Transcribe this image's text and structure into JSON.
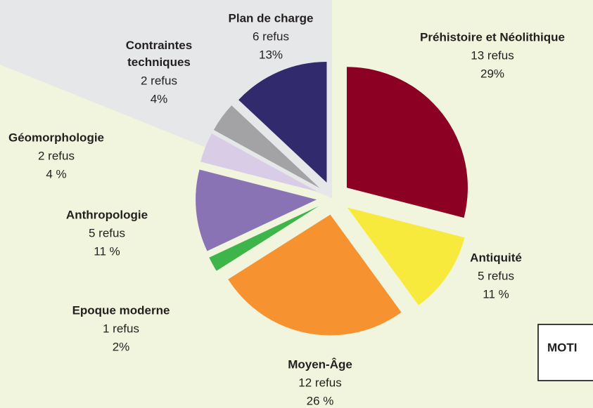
{
  "chart_data": {
    "type": "pie",
    "categories": [
      "Préhistoire et Néolithique",
      "Antiquité",
      "Moyen-Âge",
      "Epoque moderne",
      "Anthropologie",
      "Géomorphologie",
      "Contraintes techniques",
      "Plan de charge"
    ],
    "values": [
      29,
      11,
      26,
      2,
      11,
      4,
      4,
      13
    ],
    "value_labels": [
      "29%",
      "11 %",
      "26 %",
      "2%",
      "11 %",
      "4 %",
      "4%",
      "13%"
    ],
    "counts": [
      13,
      5,
      12,
      1,
      5,
      2,
      2,
      6
    ],
    "count_labels": [
      "13 refus",
      "5 refus",
      "12 refus",
      "1 refus",
      "5 refus",
      "2 refus",
      "2 refus",
      "6 refus"
    ],
    "colors": [
      "#8c0024",
      "#f7ea3c",
      "#f6922f",
      "#3db54a",
      "#8973b4",
      "#d9cce7",
      "#a3a3a5",
      "#312a6c"
    ],
    "annotation": "MOTI"
  }
}
